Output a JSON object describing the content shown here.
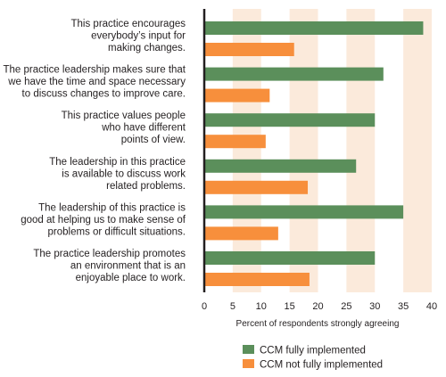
{
  "chart_data": {
    "type": "bar",
    "orientation": "horizontal",
    "categories": [
      [
        "This practice encourages",
        "everybody’s input for",
        "making changes."
      ],
      [
        "The practice leadership makes sure that",
        "we have the time and space necessary",
        "to discuss changes to improve care."
      ],
      [
        "This practice values people",
        "who have different",
        "points of view."
      ],
      [
        "The leadership in this practice",
        "is available to discuss work",
        "related problems."
      ],
      [
        "The leadership of this practice is",
        "good at helping us to make sense of",
        "problems or difficult situations."
      ],
      [
        "The practice leadership promotes",
        "an environment that is an",
        "enjoyable place to work."
      ]
    ],
    "series": [
      {
        "name": "CCM fully implemented",
        "color": "#5b8f5b",
        "values": [
          38.5,
          31.5,
          30,
          26.7,
          35,
          30
        ]
      },
      {
        "name": "CCM not fully implemented",
        "color": "#f78f3c",
        "values": [
          15.8,
          11.5,
          10.8,
          18.2,
          13,
          18.5
        ]
      }
    ],
    "xlabel": "Percent of respondents strongly agreeing",
    "xlim": [
      0,
      40
    ],
    "xticks": [
      0,
      5,
      10,
      15,
      20,
      25,
      30,
      35,
      40
    ],
    "legend_position": "bottom",
    "band_color": "#fbeadb"
  }
}
